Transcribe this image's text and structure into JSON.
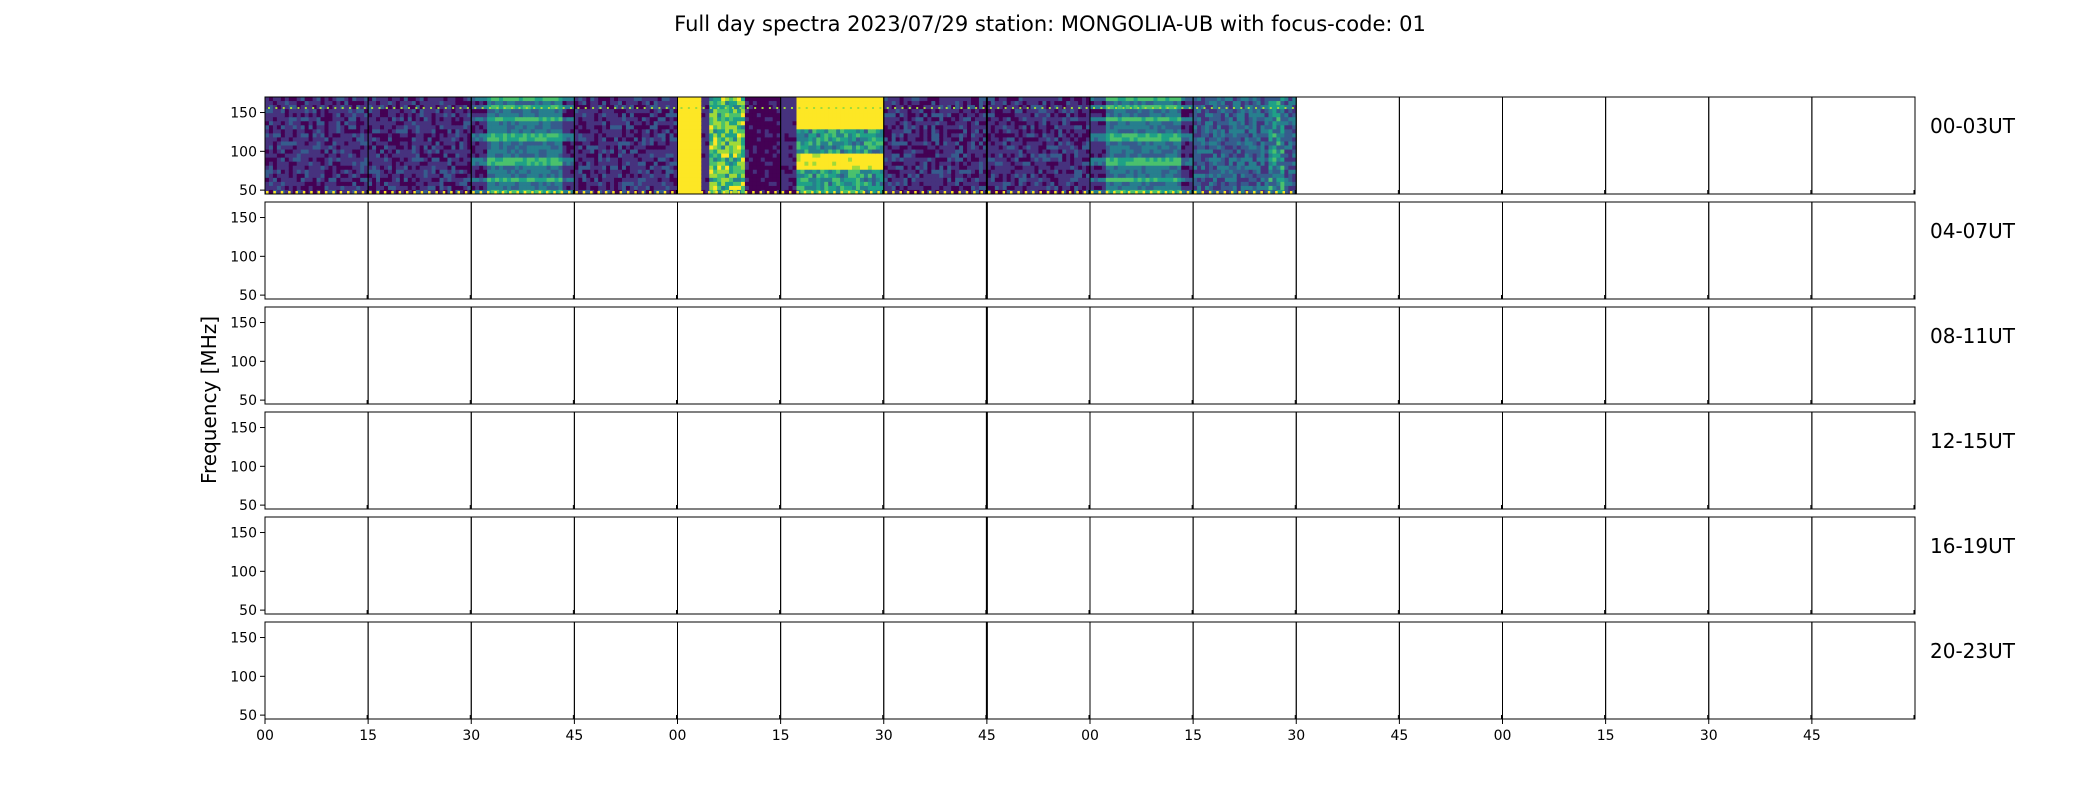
{
  "chart_data": {
    "type": "heatmap",
    "title": "Full day spectra 2023/07/29 station: MONGOLIA-UB with focus-code: 01",
    "ylabel": "Frequency [MHz]",
    "xlabel": "",
    "y_ticks": [
      50,
      100,
      150
    ],
    "ylim": [
      45,
      170
    ],
    "x_tick_labels": [
      "00",
      "15",
      "30",
      "45",
      "00",
      "15",
      "30",
      "45",
      "00",
      "15",
      "30",
      "45",
      "00",
      "15",
      "30",
      "45"
    ],
    "row_labels": [
      "00-03UT",
      "04-07UT",
      "08-11UT",
      "12-15UT",
      "16-19UT",
      "20-23UT"
    ],
    "panels_per_row": 16,
    "colormap": "viridis",
    "data_filled_panels": [
      {
        "row": 0,
        "panel": 0,
        "pattern": "noise-low"
      },
      {
        "row": 0,
        "panel": 1,
        "pattern": "noise-low"
      },
      {
        "row": 0,
        "panel": 2,
        "pattern": "bands-mid"
      },
      {
        "row": 0,
        "panel": 3,
        "pattern": "noise-low"
      },
      {
        "row": 0,
        "panel": 4,
        "pattern": "burst-high"
      },
      {
        "row": 0,
        "panel": 5,
        "pattern": "burst-saturated"
      },
      {
        "row": 0,
        "panel": 6,
        "pattern": "noise-low"
      },
      {
        "row": 0,
        "panel": 7,
        "pattern": "noise-low"
      },
      {
        "row": 0,
        "panel": 8,
        "pattern": "bands-mid"
      },
      {
        "row": 0,
        "panel": 9,
        "pattern": "noise-mid"
      }
    ]
  }
}
